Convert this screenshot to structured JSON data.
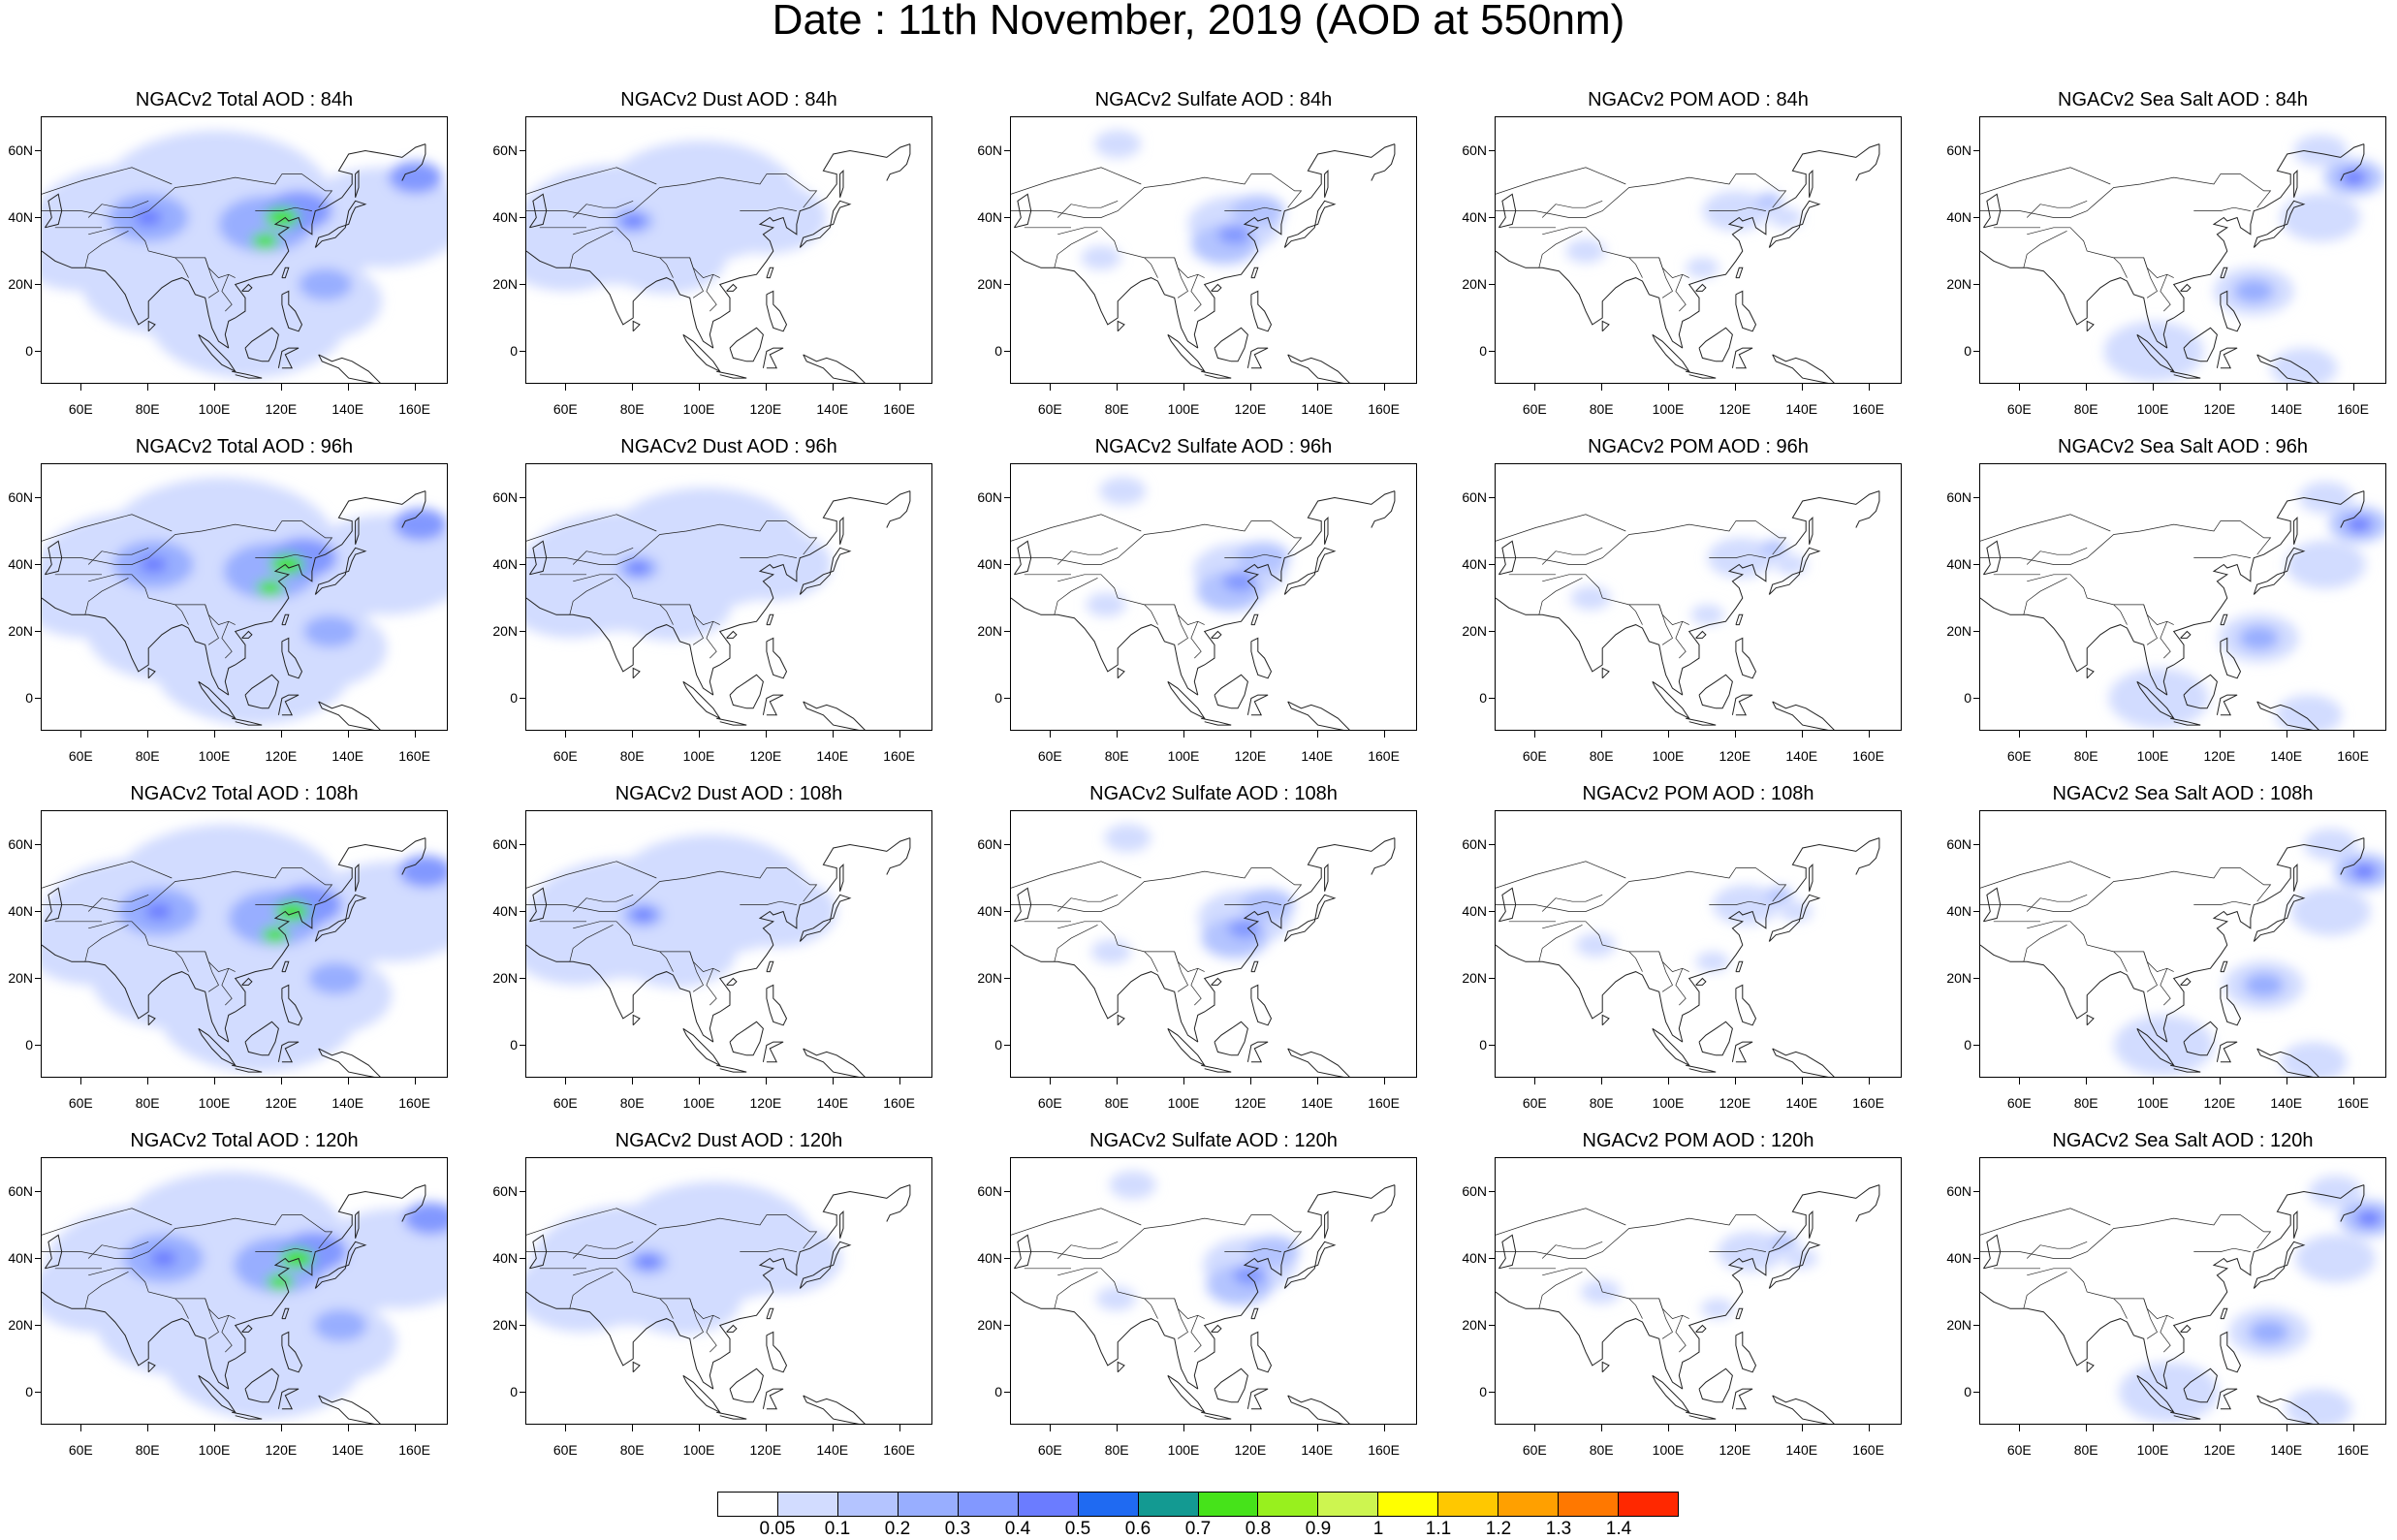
{
  "figure": {
    "title": "Date : 11th November, 2019 (AOD at 550nm)"
  },
  "map": {
    "lon_ticks": [
      "60E",
      "80E",
      "100E",
      "120E",
      "140E",
      "160E"
    ],
    "lat_ticks": [
      "60N",
      "40N",
      "20N",
      "0"
    ],
    "lon_range": [
      48,
      170
    ],
    "lat_range": [
      -10,
      70
    ]
  },
  "panels": [
    {
      "title": "NGACv2 Total AOD : 84h",
      "species": "total"
    },
    {
      "title": "NGACv2 Dust AOD : 84h",
      "species": "dust"
    },
    {
      "title": "NGACv2 Sulfate AOD : 84h",
      "species": "sulfate"
    },
    {
      "title": "NGACv2 POM AOD : 84h",
      "species": "pom"
    },
    {
      "title": "NGACv2 Sea Salt AOD : 84h",
      "species": "seasalt"
    },
    {
      "title": "NGACv2 Total AOD : 96h",
      "species": "total"
    },
    {
      "title": "NGACv2 Dust AOD : 96h",
      "species": "dust"
    },
    {
      "title": "NGACv2 Sulfate AOD : 96h",
      "species": "sulfate"
    },
    {
      "title": "NGACv2 POM AOD : 96h",
      "species": "pom"
    },
    {
      "title": "NGACv2 Sea Salt AOD : 96h",
      "species": "seasalt"
    },
    {
      "title": "NGACv2 Total AOD : 108h",
      "species": "total"
    },
    {
      "title": "NGACv2 Dust AOD : 108h",
      "species": "dust"
    },
    {
      "title": "NGACv2 Sulfate AOD : 108h",
      "species": "sulfate"
    },
    {
      "title": "NGACv2 POM AOD : 108h",
      "species": "pom"
    },
    {
      "title": "NGACv2 Sea Salt AOD : 108h",
      "species": "seasalt"
    },
    {
      "title": "NGACv2 Total AOD : 120h",
      "species": "total"
    },
    {
      "title": "NGACv2 Dust AOD : 120h",
      "species": "dust"
    },
    {
      "title": "NGACv2 Sulfate AOD : 120h",
      "species": "sulfate"
    },
    {
      "title": "NGACv2 POM AOD : 120h",
      "species": "pom"
    },
    {
      "title": "NGACv2 Sea Salt  AOD : 120h",
      "species": "seasalt"
    }
  ],
  "colorbar": {
    "labels": [
      "0.05",
      "0.1",
      "0.2",
      "0.3",
      "0.4",
      "0.5",
      "0.6",
      "0.7",
      "0.8",
      "0.9",
      "1",
      "1.1",
      "1.2",
      "1.3",
      "1.4"
    ],
    "colors": [
      "#ffffff",
      "#d2dcff",
      "#b4c4ff",
      "#98aeff",
      "#8298ff",
      "#6b7cff",
      "#1f6af2",
      "#139a92",
      "#46e31a",
      "#98f01e",
      "#cdf550",
      "#ffff00",
      "#ffc800",
      "#ffa000",
      "#ff7800",
      "#ff2800"
    ]
  }
}
